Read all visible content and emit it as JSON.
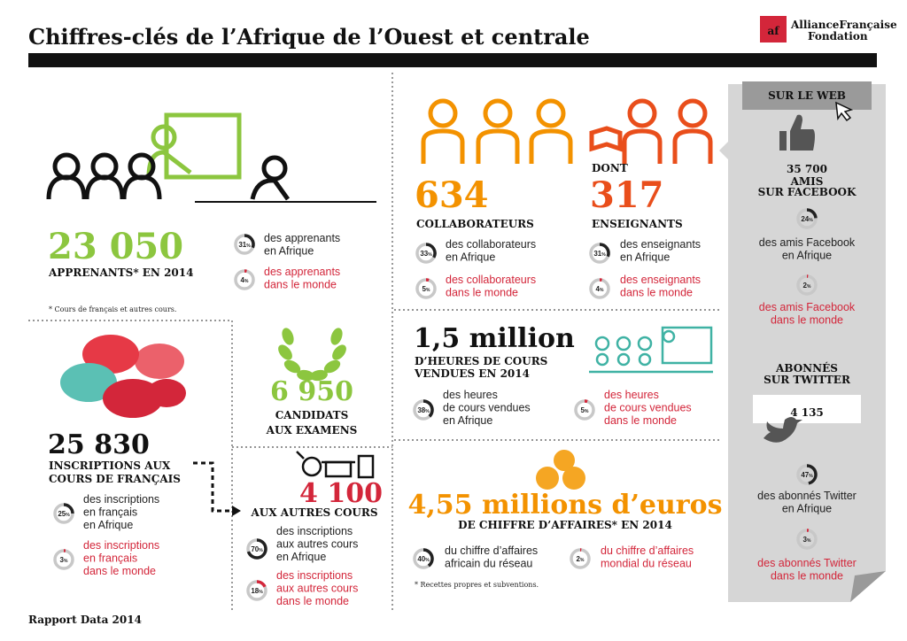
{
  "header": {
    "title": "Chiffres-clés de l’Afrique de l’Ouest et centrale",
    "logo": {
      "mark": "af",
      "name": "AllianceFrançaise",
      "sub": "Fondation"
    }
  },
  "pct_unit": "%",
  "learners": {
    "number": "23 050",
    "label": [
      "APPRENANTS* EN 2014"
    ],
    "stats": [
      {
        "value": 31,
        "lines": [
          "des apprenants",
          "en Afrique"
        ],
        "color": "#222222"
      },
      {
        "value": 4,
        "lines": [
          "des apprenants",
          "dans le monde"
        ],
        "color": "#d3263a"
      }
    ],
    "note": "* Cours de français et autres cours."
  },
  "staff": {
    "number": "634",
    "label": [
      "COLLABORATEURS"
    ],
    "stats": [
      {
        "value": 33,
        "lines": [
          "des collaborateurs",
          "en Afrique"
        ],
        "color": "#222222"
      },
      {
        "value": 5,
        "lines": [
          "des collaborateurs",
          "dans le monde"
        ],
        "color": "#d3263a"
      }
    ]
  },
  "teachers": {
    "prefix": "DONT",
    "number": "317",
    "label": [
      "ENSEIGNANTS"
    ],
    "stats": [
      {
        "value": 31,
        "lines": [
          "des enseignants",
          "en Afrique"
        ],
        "color": "#222222"
      },
      {
        "value": 4,
        "lines": [
          "des enseignants",
          "dans le monde"
        ],
        "color": "#d3263a"
      }
    ]
  },
  "hours": {
    "number": "1,5 million",
    "label": [
      "D’HEURES DE COURS",
      "VENDUES EN 2014"
    ],
    "stats": [
      {
        "value": 38,
        "lines": [
          "des heures",
          "de cours vendues",
          "en Afrique"
        ],
        "color": "#222222"
      },
      {
        "value": 5,
        "lines": [
          "des heures",
          "de cours vendues",
          "dans le monde"
        ],
        "color": "#d3263a"
      }
    ]
  },
  "exams": {
    "number": "6 950",
    "label": [
      "CANDIDATS",
      "AUX EXAMENS"
    ]
  },
  "enrollments": {
    "number": "25 830",
    "label": [
      "INSCRIPTIONS AUX",
      "COURS DE FRANÇAIS"
    ],
    "stats": [
      {
        "value": 25,
        "lines": [
          "des inscriptions",
          "en français",
          "en Afrique"
        ],
        "color": "#222222"
      },
      {
        "value": 3,
        "lines": [
          "des inscriptions",
          "en français",
          "dans le monde"
        ],
        "color": "#d3263a"
      }
    ]
  },
  "other_courses": {
    "number": "4 100",
    "label": [
      "AUX AUTRES COURS"
    ],
    "stats": [
      {
        "value": 70,
        "lines": [
          "des inscriptions",
          "aux autres cours",
          "en Afrique"
        ],
        "color": "#222222"
      },
      {
        "value": 18,
        "lines": [
          "des inscriptions",
          "aux autres cours",
          "dans le monde"
        ],
        "color": "#d3263a"
      }
    ]
  },
  "revenue": {
    "number": "4,55 millions d’euros",
    "label": [
      "DE CHIFFRE D’AFFAIRES* EN 2014"
    ],
    "stats": [
      {
        "value": 40,
        "lines": [
          "du chiffre d’affaires",
          "africain du réseau"
        ],
        "color": "#222222"
      },
      {
        "value": 2,
        "lines": [
          "du chiffre d’affaires",
          "mondial du réseau"
        ],
        "color": "#d3263a"
      }
    ],
    "note": "* Recettes propres et subventions."
  },
  "web": {
    "title": "SUR LE WEB",
    "facebook": {
      "number": "35 700",
      "label": [
        "AMIS",
        "SUR FACEBOOK"
      ],
      "stats": [
        {
          "value": 24,
          "lines": [
            "des amis Facebook",
            "en Afrique"
          ],
          "color": "#222222"
        },
        {
          "value": 2,
          "lines": [
            "des amis Facebook",
            "dans le monde"
          ],
          "color": "#d3263a"
        }
      ]
    },
    "twitter": {
      "label": [
        "ABONNÉS",
        "SUR TWITTER"
      ],
      "number": "4 135",
      "stats": [
        {
          "value": 47,
          "lines": [
            "des abonnés Twitter",
            "en Afrique"
          ],
          "color": "#222222"
        },
        {
          "value": 3,
          "lines": [
            "des abonnés Twitter",
            "dans le monde"
          ],
          "color": "#d3263a"
        }
      ]
    }
  },
  "footer": "Rapport Data 2014"
}
